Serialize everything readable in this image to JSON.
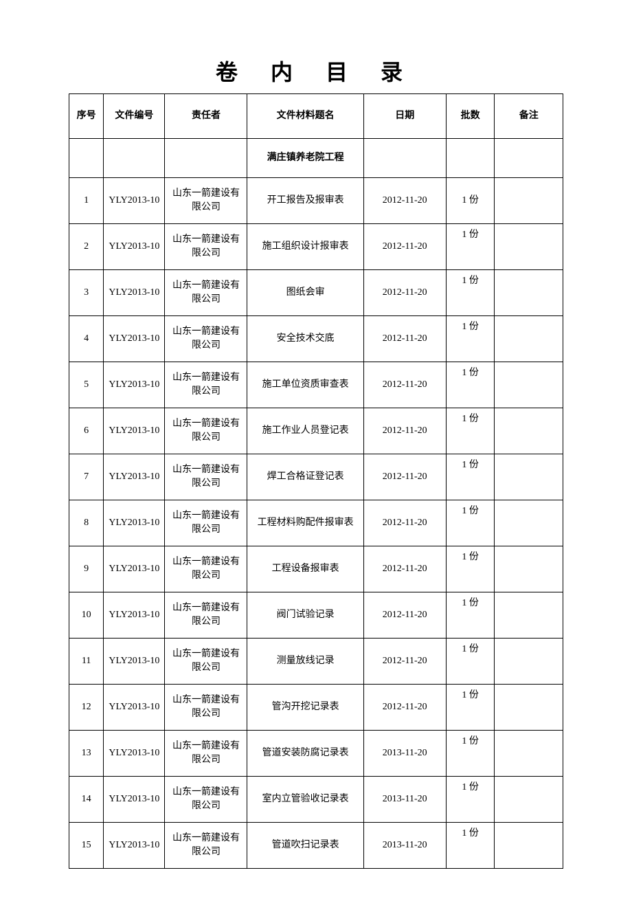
{
  "title": "卷 内 目 录",
  "columns": [
    "序号",
    "文件编号",
    "责任者",
    "文件材料题名",
    "日期",
    "批数",
    "备注"
  ],
  "section_title": "满庄镇养老院工程",
  "rows": [
    {
      "seq": "1",
      "docno": "YLY2013-10",
      "resp": "山东一箭建设有限公司",
      "title": "开工报告及报审表",
      "date": "2012-11-20",
      "qty": "1 份",
      "remark": ""
    },
    {
      "seq": "2",
      "docno": "YLY2013-10",
      "resp": "山东一箭建设有限公司",
      "title": "施工组织设计报审表",
      "date": "2012-11-20",
      "qty": "1 份",
      "remark": ""
    },
    {
      "seq": "3",
      "docno": "YLY2013-10",
      "resp": "山东一箭建设有限公司",
      "title": "图纸会审",
      "date": "2012-11-20",
      "qty": "1 份",
      "remark": ""
    },
    {
      "seq": "4",
      "docno": "YLY2013-10",
      "resp": "山东一箭建设有限公司",
      "title": "安全技术交底",
      "date": "2012-11-20",
      "qty": "1 份",
      "remark": ""
    },
    {
      "seq": "5",
      "docno": "YLY2013-10",
      "resp": "山东一箭建设有限公司",
      "title": "施工单位资质审查表",
      "date": "2012-11-20",
      "qty": "1 份",
      "remark": ""
    },
    {
      "seq": "6",
      "docno": "YLY2013-10",
      "resp": "山东一箭建设有限公司",
      "title": "施工作业人员登记表",
      "date": "2012-11-20",
      "qty": "1 份",
      "remark": ""
    },
    {
      "seq": "7",
      "docno": "YLY2013-10",
      "resp": "山东一箭建设有限公司",
      "title": "焊工合格证登记表",
      "date": "2012-11-20",
      "qty": "1 份",
      "remark": ""
    },
    {
      "seq": "8",
      "docno": "YLY2013-10",
      "resp": "山东一箭建设有限公司",
      "title": "工程材料购配件报审表",
      "date": "2012-11-20",
      "qty": "1 份",
      "remark": ""
    },
    {
      "seq": "9",
      "docno": "YLY2013-10",
      "resp": "山东一箭建设有限公司",
      "title": "工程设备报审表",
      "date": "2012-11-20",
      "qty": "1 份",
      "remark": ""
    },
    {
      "seq": "10",
      "docno": "YLY2013-10",
      "resp": "山东一箭建设有限公司",
      "title": "阀门试验记录",
      "date": "2012-11-20",
      "qty": "1 份",
      "remark": ""
    },
    {
      "seq": "11",
      "docno": "YLY2013-10",
      "resp": "山东一箭建设有限公司",
      "title": "测量放线记录",
      "date": "2012-11-20",
      "qty": "1 份",
      "remark": ""
    },
    {
      "seq": "12",
      "docno": "YLY2013-10",
      "resp": "山东一箭建设有限公司",
      "title": "管沟开挖记录表",
      "date": "2012-11-20",
      "qty": "1 份",
      "remark": ""
    },
    {
      "seq": "13",
      "docno": "YLY2013-10",
      "resp": "山东一箭建设有限公司",
      "title": "管道安装防腐记录表",
      "date": "2013-11-20",
      "qty": "1 份",
      "remark": ""
    },
    {
      "seq": "14",
      "docno": "YLY2013-10",
      "resp": "山东一箭建设有限公司",
      "title": "室内立管验收记录表",
      "date": "2013-11-20",
      "qty": "1 份",
      "remark": ""
    },
    {
      "seq": "15",
      "docno": "YLY2013-10",
      "resp": "山东一箭建设有限公司",
      "title": "管道吹扫记录表",
      "date": "2013-11-20",
      "qty": "1 份",
      "remark": ""
    }
  ]
}
